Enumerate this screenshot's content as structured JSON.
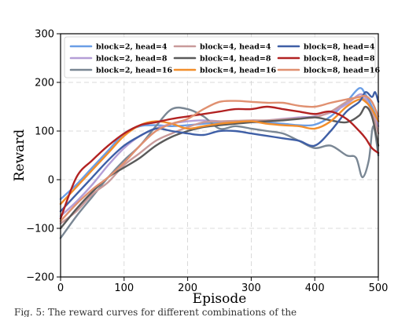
{
  "caption": "Fig. 5: The reward curves for different combinations of the",
  "chart_data": {
    "type": "line",
    "xlabel": "Episode",
    "ylabel": "Reward",
    "xlim": [
      0,
      500
    ],
    "ylim": [
      -200,
      300
    ],
    "xticks": [
      0,
      100,
      200,
      300,
      400,
      500
    ],
    "yticks": [
      -200,
      -100,
      0,
      100,
      200,
      300
    ],
    "xtick_labels": [
      "0",
      "100",
      "200",
      "300",
      "400",
      "500"
    ],
    "ytick_labels": [
      "−200",
      "−100",
      "0",
      "100",
      "200",
      "300"
    ],
    "grid": true,
    "legend_position": "top",
    "legend_columns": 3,
    "series": [
      {
        "name": "block=2, head=4",
        "color": "#6a9ee6",
        "x": [
          0,
          25,
          50,
          75,
          100,
          125,
          150,
          175,
          200,
          225,
          250,
          275,
          300,
          325,
          350,
          375,
          400,
          425,
          450,
          470,
          480,
          490,
          500
        ],
        "y": [
          -40,
          -10,
          25,
          60,
          95,
          110,
          112,
          110,
          112,
          115,
          118,
          117,
          118,
          117,
          115,
          112,
          113,
          130,
          160,
          188,
          175,
          150,
          120
        ]
      },
      {
        "name": "block=2, head=8",
        "color": "#b49ed6",
        "x": [
          0,
          25,
          50,
          75,
          100,
          125,
          150,
          175,
          200,
          225,
          250,
          275,
          300,
          325,
          350,
          375,
          400,
          425,
          450,
          470,
          480,
          490,
          500
        ],
        "y": [
          -75,
          -45,
          -10,
          30,
          65,
          90,
          105,
          115,
          120,
          122,
          120,
          118,
          120,
          122,
          125,
          128,
          130,
          138,
          155,
          175,
          168,
          140,
          110
        ]
      },
      {
        "name": "block=2, head=16",
        "color": "#7a8794",
        "x": [
          0,
          25,
          50,
          75,
          100,
          125,
          150,
          175,
          200,
          225,
          250,
          275,
          300,
          325,
          350,
          375,
          400,
          425,
          450,
          465,
          475,
          485,
          492,
          500
        ],
        "y": [
          -120,
          -75,
          -35,
          5,
          40,
          70,
          110,
          145,
          145,
          130,
          105,
          110,
          105,
          100,
          95,
          80,
          65,
          70,
          50,
          45,
          5,
          40,
          110,
          50
        ]
      },
      {
        "name": "block=4, head=4",
        "color": "#c99a9a",
        "x": [
          0,
          25,
          50,
          75,
          100,
          125,
          150,
          175,
          200,
          225,
          250,
          275,
          300,
          325,
          350,
          375,
          400,
          425,
          450,
          470,
          480,
          490,
          500
        ],
        "y": [
          -90,
          -65,
          -30,
          -5,
          30,
          55,
          80,
          95,
          108,
          118,
          120,
          121,
          122,
          122,
          124,
          126,
          128,
          140,
          160,
          170,
          162,
          140,
          95
        ]
      },
      {
        "name": "block=4, head=8",
        "color": "#5a5a5a",
        "x": [
          0,
          25,
          50,
          75,
          100,
          125,
          150,
          175,
          200,
          225,
          250,
          275,
          300,
          325,
          350,
          375,
          400,
          425,
          450,
          470,
          480,
          490,
          500
        ],
        "y": [
          -100,
          -60,
          -25,
          5,
          25,
          45,
          70,
          88,
          100,
          108,
          112,
          115,
          118,
          120,
          122,
          125,
          128,
          122,
          118,
          132,
          150,
          130,
          70
        ]
      },
      {
        "name": "block=4, head=16",
        "color": "#f28e2b",
        "x": [
          0,
          25,
          50,
          75,
          100,
          125,
          150,
          175,
          200,
          225,
          250,
          275,
          300,
          325,
          350,
          375,
          400,
          425,
          450,
          470,
          480,
          490,
          500
        ],
        "y": [
          -50,
          -15,
          20,
          55,
          90,
          112,
          120,
          115,
          105,
          110,
          115,
          118,
          120,
          115,
          112,
          110,
          105,
          120,
          150,
          165,
          160,
          145,
          120
        ]
      },
      {
        "name": "block=8, head=4",
        "color": "#3f5fa6",
        "x": [
          0,
          25,
          50,
          75,
          100,
          125,
          150,
          175,
          200,
          225,
          250,
          275,
          300,
          325,
          350,
          375,
          400,
          425,
          450,
          470,
          480,
          490,
          495,
          500
        ],
        "y": [
          -65,
          -30,
          5,
          40,
          70,
          90,
          105,
          100,
          95,
          92,
          100,
          100,
          95,
          90,
          85,
          80,
          70,
          100,
          140,
          160,
          180,
          170,
          180,
          160
        ]
      },
      {
        "name": "block=8, head=8",
        "color": "#b22222",
        "x": [
          0,
          25,
          50,
          75,
          100,
          125,
          150,
          175,
          200,
          225,
          250,
          275,
          300,
          325,
          350,
          375,
          400,
          425,
          450,
          470,
          480,
          490,
          500
        ],
        "y": [
          -80,
          5,
          40,
          70,
          95,
          112,
          118,
          125,
          130,
          135,
          140,
          145,
          145,
          150,
          145,
          140,
          135,
          140,
          125,
          100,
          85,
          65,
          55
        ]
      },
      {
        "name": "block=8, head=16",
        "color": "#e09070",
        "x": [
          0,
          25,
          50,
          75,
          100,
          125,
          150,
          175,
          200,
          225,
          250,
          275,
          300,
          325,
          350,
          375,
          400,
          425,
          450,
          470,
          480,
          490,
          500
        ],
        "y": [
          -85,
          -50,
          -20,
          5,
          35,
          70,
          100,
          115,
          125,
          145,
          160,
          162,
          160,
          158,
          158,
          152,
          150,
          158,
          165,
          170,
          172,
          160,
          130
        ]
      }
    ]
  }
}
